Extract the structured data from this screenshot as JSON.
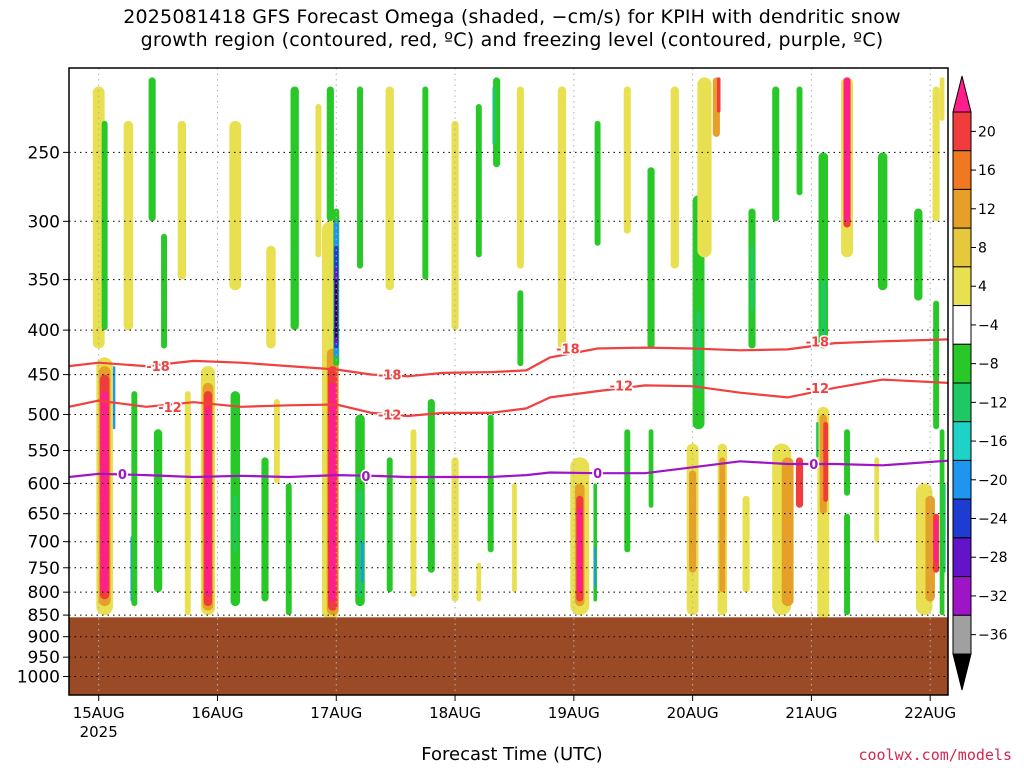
{
  "figure": {
    "title_line1": "2025081418 GFS Forecast Omega (shaded, −cm/s) for KPIH with dendritic snow",
    "title_line2": "growth region (contoured, red, ºC) and freezing level (contoured, purple, ºC)",
    "credit": "coolwx.com/models"
  },
  "chart_data": {
    "type": "heatmap",
    "title": "2025081418 GFS Forecast Omega (shaded, −cm/s) for KPIH with dendritic snow growth region (contoured, red, ºC) and freezing level (contoured, purple, ºC)",
    "xlabel": "Forecast Time (UTC)",
    "ylabel": "",
    "x_ticks": [
      "15AUG",
      "16AUG",
      "17AUG",
      "18AUG",
      "19AUG",
      "20AUG",
      "21AUG",
      "22AUG"
    ],
    "x_year_label": "2025",
    "x_range_days": [
      14.75,
      22.15
    ],
    "y_ticks": [
      250,
      300,
      350,
      400,
      450,
      500,
      550,
      600,
      650,
      700,
      750,
      800,
      850,
      900,
      950,
      1000
    ],
    "y_range_hpa": [
      200,
      1050
    ],
    "y_scale": "log",
    "ground_level_hpa": 855,
    "grid": true,
    "colorbar": {
      "labels": [
        "20",
        "16",
        "12",
        "8",
        "4",
        "−4",
        "−8",
        "−12",
        "−16",
        "−20",
        "−24",
        "−28",
        "−32",
        "−36"
      ],
      "colors": [
        "#ff1e8c",
        "#f03c3c",
        "#f07820",
        "#e6a028",
        "#e6c83c",
        "#e8e050",
        "#ffffff",
        "#28c828",
        "#1ec864",
        "#1ed2c8",
        "#1e96f0",
        "#1e3cd2",
        "#6414c8",
        "#a014c8",
        "#a0a0a0",
        "#000000"
      ]
    },
    "contours": [
      {
        "label": "-18",
        "color": "#f04040",
        "points": [
          [
            14.75,
            440
          ],
          [
            15.0,
            436
          ],
          [
            15.4,
            440
          ],
          [
            15.8,
            434
          ],
          [
            16.2,
            436
          ],
          [
            16.6,
            440
          ],
          [
            17.0,
            444
          ],
          [
            17.3,
            450
          ],
          [
            17.6,
            452
          ],
          [
            17.9,
            448
          ],
          [
            18.3,
            447
          ],
          [
            18.6,
            445
          ],
          [
            18.8,
            430
          ],
          [
            19.2,
            420
          ],
          [
            19.6,
            419
          ],
          [
            20.0,
            420
          ],
          [
            20.4,
            422
          ],
          [
            20.8,
            421
          ],
          [
            21.2,
            414
          ],
          [
            21.6,
            412
          ],
          [
            22.15,
            410
          ]
        ]
      },
      {
        "label": "-12",
        "color": "#f04040",
        "points": [
          [
            14.75,
            490
          ],
          [
            15.0,
            482
          ],
          [
            15.4,
            490
          ],
          [
            15.8,
            484
          ],
          [
            16.2,
            490
          ],
          [
            16.6,
            488
          ],
          [
            17.0,
            487
          ],
          [
            17.3,
            498
          ],
          [
            17.6,
            502
          ],
          [
            17.9,
            498
          ],
          [
            18.3,
            498
          ],
          [
            18.6,
            492
          ],
          [
            18.8,
            478
          ],
          [
            19.2,
            470
          ],
          [
            19.6,
            463
          ],
          [
            20.0,
            464
          ],
          [
            20.4,
            472
          ],
          [
            20.8,
            478
          ],
          [
            21.2,
            466
          ],
          [
            21.6,
            456
          ],
          [
            22.15,
            460
          ]
        ]
      },
      {
        "label": "0",
        "color": "#a014c8",
        "points": [
          [
            14.75,
            590
          ],
          [
            15.0,
            585
          ],
          [
            15.4,
            587
          ],
          [
            15.8,
            590
          ],
          [
            16.2,
            588
          ],
          [
            16.6,
            590
          ],
          [
            17.0,
            587
          ],
          [
            17.3,
            588
          ],
          [
            17.6,
            590
          ],
          [
            17.9,
            590
          ],
          [
            18.3,
            590
          ],
          [
            18.6,
            587
          ],
          [
            18.8,
            583
          ],
          [
            19.2,
            584
          ],
          [
            19.6,
            584
          ],
          [
            20.0,
            575
          ],
          [
            20.4,
            566
          ],
          [
            20.8,
            570
          ],
          [
            21.2,
            570
          ],
          [
            21.6,
            572
          ],
          [
            22.15,
            565
          ]
        ]
      }
    ],
    "contour_labels": [
      {
        "text": "-18",
        "x": 15.5,
        "p": 440
      },
      {
        "text": "-12",
        "x": 15.6,
        "p": 490
      },
      {
        "text": "0",
        "x": 15.2,
        "p": 585
      },
      {
        "text": "-18",
        "x": 17.45,
        "p": 450
      },
      {
        "text": "-12",
        "x": 17.45,
        "p": 500
      },
      {
        "text": "0",
        "x": 17.25,
        "p": 588
      },
      {
        "text": "-18",
        "x": 18.95,
        "p": 420
      },
      {
        "text": "-12",
        "x": 19.4,
        "p": 463
      },
      {
        "text": "0",
        "x": 19.2,
        "p": 584
      },
      {
        "text": "-18",
        "x": 21.05,
        "p": 412
      },
      {
        "text": "-12",
        "x": 21.05,
        "p": 466
      },
      {
        "text": "0",
        "x": 21.02,
        "p": 570
      }
    ],
    "shaded_features": [
      {
        "color": "#e8e050",
        "x": 15.0,
        "p1": 210,
        "p2": 420,
        "w": 0.1
      },
      {
        "color": "#e8e050",
        "x": 15.25,
        "p1": 230,
        "p2": 400,
        "w": 0.08
      },
      {
        "color": "#28c828",
        "x": 15.05,
        "p1": 230,
        "p2": 400,
        "w": 0.05
      },
      {
        "color": "#28c828",
        "x": 15.45,
        "p1": 205,
        "p2": 300,
        "w": 0.06
      },
      {
        "color": "#28c828",
        "x": 15.55,
        "p1": 310,
        "p2": 420,
        "w": 0.05
      },
      {
        "color": "#e8e050",
        "x": 15.7,
        "p1": 230,
        "p2": 350,
        "w": 0.07
      },
      {
        "color": "#e8e050",
        "x": 16.15,
        "p1": 230,
        "p2": 360,
        "w": 0.1
      },
      {
        "color": "#e8e050",
        "x": 16.45,
        "p1": 320,
        "p2": 420,
        "w": 0.08
      },
      {
        "color": "#28c828",
        "x": 16.65,
        "p1": 210,
        "p2": 400,
        "w": 0.07
      },
      {
        "color": "#28c828",
        "x": 16.95,
        "p1": 210,
        "p2": 300,
        "w": 0.06
      },
      {
        "color": "#e8e050",
        "x": 16.85,
        "p1": 220,
        "p2": 330,
        "w": 0.05
      },
      {
        "color": "#28c828",
        "x": 17.2,
        "p1": 210,
        "p2": 340,
        "w": 0.05
      },
      {
        "color": "#e8e050",
        "x": 17.45,
        "p1": 210,
        "p2": 360,
        "w": 0.07
      },
      {
        "color": "#28c828",
        "x": 17.75,
        "p1": 210,
        "p2": 350,
        "w": 0.05
      },
      {
        "color": "#e8e050",
        "x": 18.0,
        "p1": 230,
        "p2": 400,
        "w": 0.06
      },
      {
        "color": "#28c828",
        "x": 18.2,
        "p1": 220,
        "p2": 330,
        "w": 0.05
      },
      {
        "color": "#28c828",
        "x": 18.35,
        "p1": 205,
        "p2": 260,
        "w": 0.06
      },
      {
        "color": "#1ec864",
        "x": 18.33,
        "p1": 210,
        "p2": 245,
        "w": 0.03
      },
      {
        "color": "#e8e050",
        "x": 18.55,
        "p1": 210,
        "p2": 340,
        "w": 0.06
      },
      {
        "color": "#28c828",
        "x": 18.55,
        "p1": 360,
        "p2": 440,
        "w": 0.05
      },
      {
        "color": "#e8e050",
        "x": 18.9,
        "p1": 210,
        "p2": 420,
        "w": 0.07
      },
      {
        "color": "#28c828",
        "x": 19.2,
        "p1": 230,
        "p2": 320,
        "w": 0.05
      },
      {
        "color": "#e8e050",
        "x": 19.45,
        "p1": 210,
        "p2": 310,
        "w": 0.06
      },
      {
        "color": "#28c828",
        "x": 19.65,
        "p1": 260,
        "p2": 420,
        "w": 0.06
      },
      {
        "color": "#e8e050",
        "x": 19.85,
        "p1": 210,
        "p2": 340,
        "w": 0.07
      },
      {
        "color": "#28c828",
        "x": 20.05,
        "p1": 280,
        "p2": 520,
        "w": 0.1
      },
      {
        "color": "#1ec864",
        "x": 20.05,
        "p1": 380,
        "p2": 470,
        "w": 0.04
      },
      {
        "color": "#e8e050",
        "x": 20.1,
        "p1": 205,
        "p2": 330,
        "w": 0.12
      },
      {
        "color": "#e6a028",
        "x": 20.2,
        "p1": 205,
        "p2": 240,
        "w": 0.06
      },
      {
        "color": "#f03c3c",
        "x": 20.22,
        "p1": 205,
        "p2": 225,
        "w": 0.03
      },
      {
        "color": "#28c828",
        "x": 20.5,
        "p1": 290,
        "p2": 420,
        "w": 0.06
      },
      {
        "color": "#1ec864",
        "x": 20.5,
        "p1": 320,
        "p2": 380,
        "w": 0.03
      },
      {
        "color": "#28c828",
        "x": 20.7,
        "p1": 210,
        "p2": 300,
        "w": 0.06
      },
      {
        "color": "#28c828",
        "x": 20.9,
        "p1": 210,
        "p2": 280,
        "w": 0.05
      },
      {
        "color": "#28c828",
        "x": 21.1,
        "p1": 250,
        "p2": 420,
        "w": 0.08
      },
      {
        "color": "#1ec864",
        "x": 21.1,
        "p1": 350,
        "p2": 410,
        "w": 0.04
      },
      {
        "color": "#e8e050",
        "x": 21.3,
        "p1": 205,
        "p2": 330,
        "w": 0.1
      },
      {
        "color": "#f03c3c",
        "x": 21.3,
        "p1": 205,
        "p2": 305,
        "w": 0.06
      },
      {
        "color": "#ff1e8c",
        "x": 21.3,
        "p1": 205,
        "p2": 300,
        "w": 0.05
      },
      {
        "color": "#28c828",
        "x": 21.6,
        "p1": 250,
        "p2": 360,
        "w": 0.08
      },
      {
        "color": "#28c828",
        "x": 21.9,
        "p1": 290,
        "p2": 370,
        "w": 0.07
      },
      {
        "color": "#e8e050",
        "x": 22.05,
        "p1": 210,
        "p2": 300,
        "w": 0.06
      },
      {
        "color": "#28c828",
        "x": 22.05,
        "p1": 370,
        "p2": 520,
        "w": 0.05
      },
      {
        "color": "#e8e050",
        "x": 22.1,
        "p1": 205,
        "p2": 230,
        "w": 0.04
      },
      {
        "color": "#e8e050",
        "x": 15.05,
        "p1": 430,
        "p2": 850,
        "w": 0.14
      },
      {
        "color": "#e6a028",
        "x": 15.05,
        "p1": 440,
        "p2": 830,
        "w": 0.1
      },
      {
        "color": "#f03c3c",
        "x": 15.05,
        "p1": 450,
        "p2": 815,
        "w": 0.08
      },
      {
        "color": "#ff1e8c",
        "x": 15.05,
        "p1": 470,
        "p2": 800,
        "w": 0.06
      },
      {
        "color": "#1e96f0",
        "x": 15.13,
        "p1": 440,
        "p2": 520,
        "w": 0.02
      },
      {
        "color": "#1e96f0",
        "x": 15.28,
        "p1": 690,
        "p2": 820,
        "w": 0.025
      },
      {
        "color": "#28c828",
        "x": 15.3,
        "p1": 470,
        "p2": 830,
        "w": 0.05
      },
      {
        "color": "#28c828",
        "x": 15.5,
        "p1": 520,
        "p2": 800,
        "w": 0.07
      },
      {
        "color": "#e8e050",
        "x": 15.75,
        "p1": 470,
        "p2": 850,
        "w": 0.05
      },
      {
        "color": "#e8e050",
        "x": 15.92,
        "p1": 440,
        "p2": 850,
        "w": 0.12
      },
      {
        "color": "#e6a028",
        "x": 15.92,
        "p1": 460,
        "p2": 840,
        "w": 0.09
      },
      {
        "color": "#f03c3c",
        "x": 15.92,
        "p1": 470,
        "p2": 830,
        "w": 0.07
      },
      {
        "color": "#ff1e8c",
        "x": 15.92,
        "p1": 490,
        "p2": 810,
        "w": 0.05
      },
      {
        "color": "#28c828",
        "x": 16.15,
        "p1": 470,
        "p2": 830,
        "w": 0.08
      },
      {
        "color": "#1ec864",
        "x": 16.15,
        "p1": 620,
        "p2": 720,
        "w": 0.03
      },
      {
        "color": "#28c828",
        "x": 16.4,
        "p1": 560,
        "p2": 820,
        "w": 0.06
      },
      {
        "color": "#e8e050",
        "x": 16.5,
        "p1": 480,
        "p2": 600,
        "w": 0.05
      },
      {
        "color": "#28c828",
        "x": 16.6,
        "p1": 600,
        "p2": 850,
        "w": 0.05
      },
      {
        "color": "#e8e050",
        "x": 16.95,
        "p1": 300,
        "p2": 860,
        "w": 0.14
      },
      {
        "color": "#e6a028",
        "x": 16.97,
        "p1": 420,
        "p2": 850,
        "w": 0.1
      },
      {
        "color": "#f03c3c",
        "x": 16.97,
        "p1": 440,
        "p2": 840,
        "w": 0.08
      },
      {
        "color": "#ff1e8c",
        "x": 16.97,
        "p1": 460,
        "p2": 820,
        "w": 0.06
      },
      {
        "color": "#28c828",
        "x": 17.0,
        "p1": 290,
        "p2": 440,
        "w": 0.05
      },
      {
        "color": "#1e96f0",
        "x": 17.0,
        "p1": 300,
        "p2": 430,
        "w": 0.04
      },
      {
        "color": "#1e3cd2",
        "x": 17.0,
        "p1": 320,
        "p2": 420,
        "w": 0.035
      },
      {
        "color": "#6414c8",
        "x": 17.0,
        "p1": 340,
        "p2": 415,
        "w": 0.03
      },
      {
        "color": "#000000",
        "x": 17.0,
        "p1": 350,
        "p2": 410,
        "w": 0.015
      },
      {
        "color": "#28c828",
        "x": 17.2,
        "p1": 500,
        "p2": 830,
        "w": 0.08
      },
      {
        "color": "#1ec864",
        "x": 17.2,
        "p1": 610,
        "p2": 810,
        "w": 0.04
      },
      {
        "color": "#1e96f0",
        "x": 17.22,
        "p1": 700,
        "p2": 780,
        "w": 0.02
      },
      {
        "color": "#28c828",
        "x": 17.45,
        "p1": 560,
        "p2": 800,
        "w": 0.05
      },
      {
        "color": "#e8e050",
        "x": 17.65,
        "p1": 520,
        "p2": 810,
        "w": 0.05
      },
      {
        "color": "#28c828",
        "x": 17.8,
        "p1": 480,
        "p2": 760,
        "w": 0.06
      },
      {
        "color": "#e8e050",
        "x": 18.0,
        "p1": 560,
        "p2": 820,
        "w": 0.06
      },
      {
        "color": "#28c828",
        "x": 18.3,
        "p1": 500,
        "p2": 720,
        "w": 0.05
      },
      {
        "color": "#e8e050",
        "x": 18.2,
        "p1": 740,
        "p2": 820,
        "w": 0.04
      },
      {
        "color": "#e8e050",
        "x": 18.5,
        "p1": 600,
        "p2": 800,
        "w": 0.04
      },
      {
        "color": "#e8e050",
        "x": 19.05,
        "p1": 560,
        "p2": 850,
        "w": 0.16
      },
      {
        "color": "#e6a028",
        "x": 19.05,
        "p1": 600,
        "p2": 830,
        "w": 0.08
      },
      {
        "color": "#f03c3c",
        "x": 19.05,
        "p1": 620,
        "p2": 820,
        "w": 0.06
      },
      {
        "color": "#ff1e8c",
        "x": 19.05,
        "p1": 640,
        "p2": 800,
        "w": 0.04
      },
      {
        "color": "#28c828",
        "x": 19.18,
        "p1": 600,
        "p2": 820,
        "w": 0.03
      },
      {
        "color": "#1e96f0",
        "x": 19.18,
        "p1": 710,
        "p2": 790,
        "w": 0.015
      },
      {
        "color": "#28c828",
        "x": 19.45,
        "p1": 520,
        "p2": 720,
        "w": 0.05
      },
      {
        "color": "#28c828",
        "x": 19.65,
        "p1": 520,
        "p2": 640,
        "w": 0.04
      },
      {
        "color": "#e8e050",
        "x": 20.0,
        "p1": 540,
        "p2": 850,
        "w": 0.1
      },
      {
        "color": "#e6a028",
        "x": 20.0,
        "p1": 580,
        "p2": 760,
        "w": 0.06
      },
      {
        "color": "#e8e050",
        "x": 20.25,
        "p1": 540,
        "p2": 850,
        "w": 0.08
      },
      {
        "color": "#e6a028",
        "x": 20.25,
        "p1": 560,
        "p2": 800,
        "w": 0.05
      },
      {
        "color": "#e8e050",
        "x": 20.45,
        "p1": 620,
        "p2": 800,
        "w": 0.06
      },
      {
        "color": "#e8e050",
        "x": 20.75,
        "p1": 540,
        "p2": 850,
        "w": 0.16
      },
      {
        "color": "#e6a028",
        "x": 20.8,
        "p1": 560,
        "p2": 830,
        "w": 0.1
      },
      {
        "color": "#f03c3c",
        "x": 20.9,
        "p1": 560,
        "p2": 640,
        "w": 0.06
      },
      {
        "color": "#e8e050",
        "x": 21.1,
        "p1": 490,
        "p2": 860,
        "w": 0.1
      },
      {
        "color": "#e6a028",
        "x": 21.1,
        "p1": 500,
        "p2": 650,
        "w": 0.06
      },
      {
        "color": "#f03c3c",
        "x": 21.12,
        "p1": 510,
        "p2": 630,
        "w": 0.04
      },
      {
        "color": "#1ec864",
        "x": 21.05,
        "p1": 510,
        "p2": 560,
        "w": 0.02
      },
      {
        "color": "#28c828",
        "x": 21.3,
        "p1": 520,
        "p2": 620,
        "w": 0.05
      },
      {
        "color": "#28c828",
        "x": 21.3,
        "p1": 650,
        "p2": 850,
        "w": 0.05
      },
      {
        "color": "#e8e050",
        "x": 21.55,
        "p1": 560,
        "p2": 700,
        "w": 0.04
      },
      {
        "color": "#e8e050",
        "x": 21.95,
        "p1": 600,
        "p2": 850,
        "w": 0.14
      },
      {
        "color": "#e6a028",
        "x": 22.0,
        "p1": 620,
        "p2": 820,
        "w": 0.08
      },
      {
        "color": "#f03c3c",
        "x": 22.05,
        "p1": 650,
        "p2": 760,
        "w": 0.05
      },
      {
        "color": "#ff1e8c",
        "x": 22.05,
        "p1": 660,
        "p2": 740,
        "w": 0.03
      },
      {
        "color": "#28c828",
        "x": 22.1,
        "p1": 520,
        "p2": 850,
        "w": 0.04
      },
      {
        "color": "#1ec864",
        "x": 22.12,
        "p1": 600,
        "p2": 760,
        "w": 0.02
      }
    ]
  }
}
